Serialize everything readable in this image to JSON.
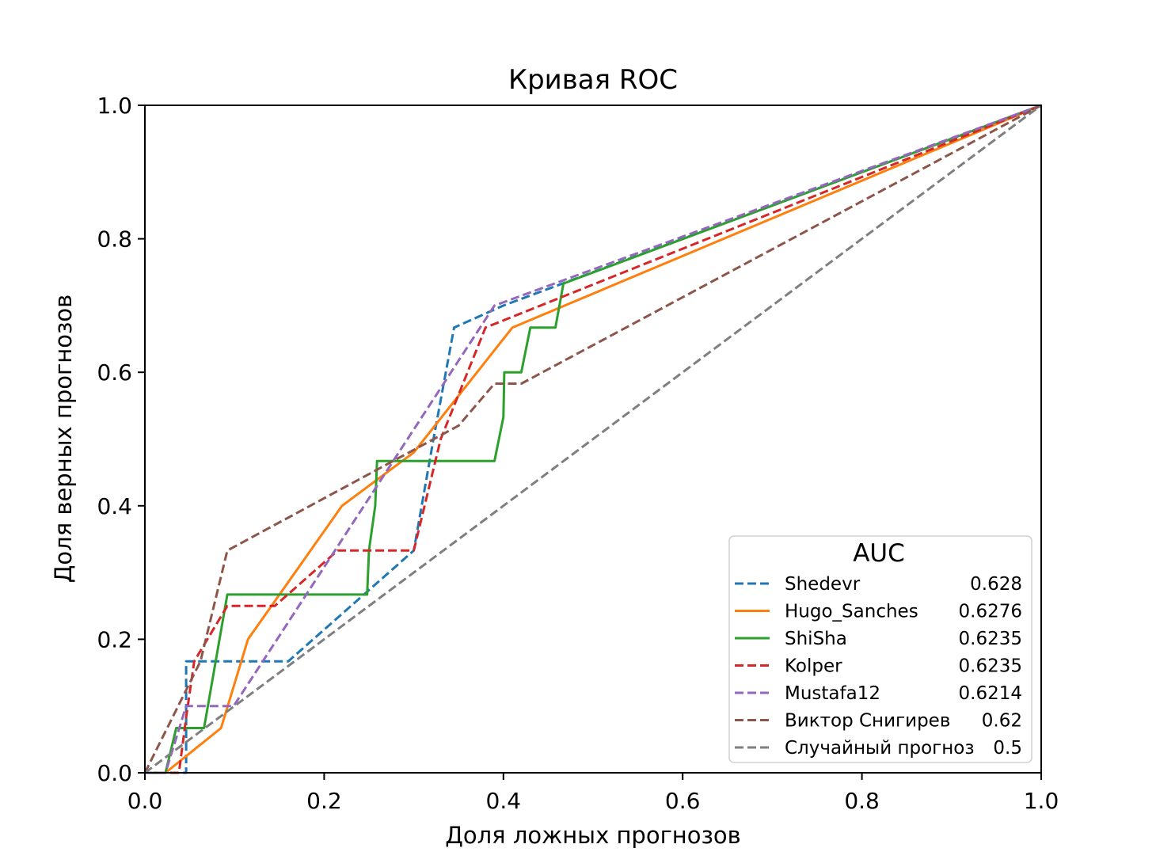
{
  "chart_data": {
    "type": "line",
    "title": "Кривая ROC",
    "xlabel": "Доля ложных прогнозов",
    "ylabel": "Доля верных прогнозов",
    "xlim": [
      0.0,
      1.0
    ],
    "ylim": [
      0.0,
      1.0
    ],
    "xticks": [
      "0.0",
      "0.2",
      "0.4",
      "0.6",
      "0.8",
      "1.0"
    ],
    "yticks": [
      "0.0",
      "0.2",
      "0.4",
      "0.6",
      "0.8",
      "1.0"
    ],
    "grid": false,
    "legend": {
      "title": "AUC",
      "position": "lower-right"
    },
    "series": [
      {
        "name": "Shedevr",
        "auc": "0.628",
        "color": "#1f77b4",
        "dash": "dashed",
        "points": [
          [
            0.0,
            0.0
          ],
          [
            0.046,
            0.0
          ],
          [
            0.046,
            0.167
          ],
          [
            0.16,
            0.167
          ],
          [
            0.3,
            0.333
          ],
          [
            0.322,
            0.5
          ],
          [
            0.345,
            0.667
          ],
          [
            0.4,
            0.7
          ],
          [
            1.0,
            1.0
          ]
        ]
      },
      {
        "name": "Hugo_Sanches",
        "auc": "0.6276",
        "color": "#ff7f0e",
        "dash": "solid",
        "points": [
          [
            0.0,
            0.0
          ],
          [
            0.023,
            0.0
          ],
          [
            0.085,
            0.067
          ],
          [
            0.115,
            0.2
          ],
          [
            0.22,
            0.4
          ],
          [
            0.3,
            0.48
          ],
          [
            0.41,
            0.667
          ],
          [
            1.0,
            1.0
          ]
        ]
      },
      {
        "name": "ShiSha",
        "auc": "0.6235",
        "color": "#2ca02c",
        "dash": "solid",
        "points": [
          [
            0.0,
            0.0
          ],
          [
            0.023,
            0.0
          ],
          [
            0.035,
            0.067
          ],
          [
            0.066,
            0.067
          ],
          [
            0.092,
            0.267
          ],
          [
            0.248,
            0.267
          ],
          [
            0.25,
            0.333
          ],
          [
            0.257,
            0.4
          ],
          [
            0.259,
            0.467
          ],
          [
            0.39,
            0.467
          ],
          [
            0.4,
            0.533
          ],
          [
            0.401,
            0.6
          ],
          [
            0.42,
            0.6
          ],
          [
            0.43,
            0.667
          ],
          [
            0.458,
            0.667
          ],
          [
            0.467,
            0.733
          ],
          [
            1.0,
            1.0
          ]
        ]
      },
      {
        "name": "Kolper",
        "auc": "0.6235",
        "color": "#d62728",
        "dash": "dashed",
        "points": [
          [
            0.0,
            0.0
          ],
          [
            0.023,
            0.0
          ],
          [
            0.038,
            0.0
          ],
          [
            0.046,
            0.083
          ],
          [
            0.055,
            0.167
          ],
          [
            0.092,
            0.25
          ],
          [
            0.145,
            0.25
          ],
          [
            0.215,
            0.333
          ],
          [
            0.3,
            0.333
          ],
          [
            0.33,
            0.5
          ],
          [
            0.38,
            0.667
          ],
          [
            1.0,
            1.0
          ]
        ]
      },
      {
        "name": "Mustafa12",
        "auc": "0.6214",
        "color": "#9467bd",
        "dash": "dashed",
        "points": [
          [
            0.0,
            0.0
          ],
          [
            0.023,
            0.0
          ],
          [
            0.046,
            0.1
          ],
          [
            0.099,
            0.1
          ],
          [
            0.39,
            0.7
          ],
          [
            1.0,
            1.0
          ]
        ]
      },
      {
        "name": "Виктор Снигирев",
        "auc": "0.62",
        "color": "#8c564b",
        "dash": "dashed",
        "points": [
          [
            0.0,
            0.0
          ],
          [
            0.062,
            0.167
          ],
          [
            0.092,
            0.333
          ],
          [
            0.35,
            0.52
          ],
          [
            0.39,
            0.583
          ],
          [
            0.42,
            0.583
          ],
          [
            1.0,
            1.0
          ]
        ]
      },
      {
        "name": "Случайный прогноз",
        "auc": "0.5",
        "color": "#7f7f7f",
        "dash": "dashed",
        "points": [
          [
            0.0,
            0.0
          ],
          [
            1.0,
            1.0
          ]
        ]
      }
    ]
  }
}
